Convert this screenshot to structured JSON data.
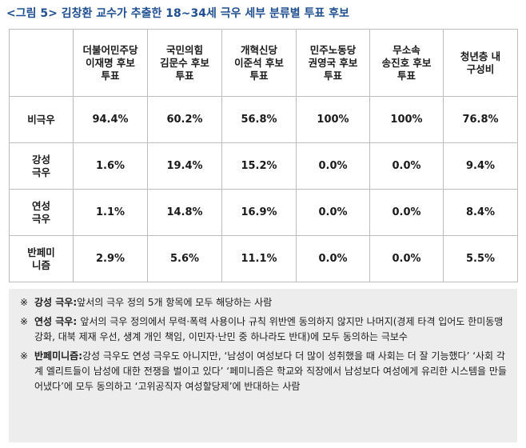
{
  "title": {
    "figure_label": "<그림 5>",
    "text": "김창환 교수가 추출한 18~34세 극우 세부 분류별 투표 후보"
  },
  "table": {
    "corner": "",
    "columns": [
      [
        "더불어민주당",
        "이재명 후보",
        "투표"
      ],
      [
        "국민의힘",
        "김문수 후보",
        "투표"
      ],
      [
        "개혁신당",
        "이준석 후보",
        "투표"
      ],
      [
        "민주노동당",
        "권영국 후보",
        "투표"
      ],
      [
        "무소속",
        "송진호 후보",
        "투표"
      ],
      [
        "청년층 내",
        "구성비"
      ]
    ],
    "rows": [
      {
        "label": [
          "비극우"
        ],
        "values": [
          "94.4%",
          "60.2%",
          "56.8%",
          "100%",
          "100%",
          "76.8%"
        ]
      },
      {
        "label": [
          "강성",
          "극우"
        ],
        "values": [
          "1.6%",
          "19.4%",
          "15.2%",
          "0.0%",
          "0.0%",
          "9.4%"
        ]
      },
      {
        "label": [
          "연성",
          "극우"
        ],
        "values": [
          "1.1%",
          "14.8%",
          "16.9%",
          "0.0%",
          "0.0%",
          "8.4%"
        ]
      },
      {
        "label": [
          "반페미",
          "니즘"
        ],
        "values": [
          "2.9%",
          "5.6%",
          "11.1%",
          "0.0%",
          "0.0%",
          "5.5%"
        ]
      }
    ]
  },
  "notes": [
    {
      "mark": "※",
      "term": "강성 극우",
      "sep": ":",
      "text": "앞서의 극우 정의 5개 항목에 모두 해당하는 사람"
    },
    {
      "mark": "※",
      "term": "연성 극우",
      "sep": ": ",
      "text": "앞서의 극우 정의에서 무력·폭력 사용이나 규칙 위반엔 동의하지 않지만 나머지(경제 타격 입어도 한미동맹 강화, 대북 제재 우선, 생계 개인 책임, 이민자·난민 중 하나라도 반대)에 모두 동의하는 극보수"
    },
    {
      "mark": "※",
      "term": "반페미니즘",
      "sep": ":",
      "text": "강성 극우도 연성 극우도 아니지만, ‘남성이 여성보다 더 많이 성취했을 때 사회는 더 잘 기능했다’ ‘사회 각계 엘리트들이 남성에 대한 전쟁을 벌이고 있다’ ‘페미니즘은 학교와 직장에서 남성보다 여성에게 유리한 시스템을 만들어냈다’에 모두 동의하고 ‘고위공직자 여성할당제’에 반대하는 사람"
    }
  ]
}
